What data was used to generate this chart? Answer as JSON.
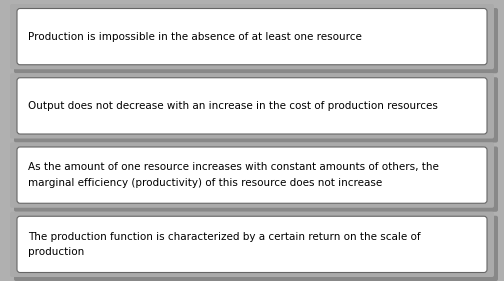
{
  "boxes": [
    {
      "lines": [
        "Production is impossible in the absence of at least one resource"
      ]
    },
    {
      "lines": [
        "Output does not decrease with an increase in the cost of production resources"
      ]
    },
    {
      "lines": [
        "As the amount of one resource increases with constant amounts of others, the",
        "marginal efficiency (productivity) of this resource does not increase"
      ]
    },
    {
      "lines": [
        "The production function is characterized by a certain return on the scale of",
        "production"
      ]
    }
  ],
  "background_color": "#b0b0b0",
  "outer_box_color": "#aaaaaa",
  "outer_box_shadow_color": "#888888",
  "inner_box_color": "#ffffff",
  "inner_box_border_color": "#666666",
  "text_color": "#000000",
  "font_size": 7.5,
  "fig_width": 5.04,
  "fig_height": 2.81,
  "dpi": 100
}
